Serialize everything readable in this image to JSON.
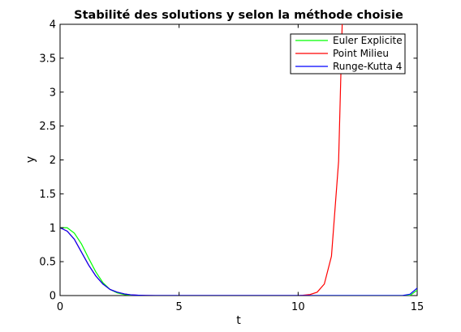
{
  "chart_data": {
    "type": "line",
    "title": "Stabilité des solutions y selon la méthode choisie",
    "xlabel": "t",
    "ylabel": "y",
    "xlim": [
      0,
      15
    ],
    "ylim": [
      0,
      4
    ],
    "xticks": [
      0,
      5,
      10,
      15
    ],
    "yticks": [
      0,
      0.5,
      1,
      1.5,
      2,
      2.5,
      3,
      3.5,
      4
    ],
    "xtick_labels": [
      "0",
      "5",
      "10",
      "15"
    ],
    "ytick_labels": [
      "0",
      "0.5",
      "1",
      "1.5",
      "2",
      "2.5",
      "3",
      "3.5",
      "4"
    ],
    "grid": false,
    "legend_position": "top-right",
    "series": [
      {
        "name": "Euler Explicite",
        "color": "#00ff00",
        "x": [
          0,
          0.3,
          0.6,
          0.9,
          1.2,
          1.5,
          1.8,
          2.1,
          2.4,
          2.7,
          3.0,
          3.3,
          3.6,
          3.9,
          4.2,
          4.5,
          6,
          8,
          10,
          12,
          14,
          14.7,
          15
        ],
        "y": [
          1.0,
          1.0,
          0.92,
          0.76,
          0.55,
          0.35,
          0.19,
          0.09,
          0.04,
          0.015,
          0.005,
          0.002,
          0.001,
          0.0,
          0.0,
          0.0,
          0.0,
          0.0,
          0.0,
          0.0,
          0.0,
          0.0,
          0.08
        ]
      },
      {
        "name": "Point Milieu",
        "color": "#ff0000",
        "x": [
          0,
          0.3,
          0.6,
          0.9,
          1.2,
          1.5,
          1.8,
          2.1,
          2.4,
          2.7,
          3.0,
          3.3,
          3.6,
          4.0,
          5,
          6,
          7,
          8,
          9,
          10,
          10.2,
          10.5,
          10.8,
          11.1,
          11.4,
          11.7,
          11.85
        ],
        "y": [
          1.0,
          0.95,
          0.83,
          0.64,
          0.45,
          0.29,
          0.17,
          0.09,
          0.05,
          0.025,
          0.01,
          0.005,
          0.002,
          0.0,
          0.0,
          0.0,
          0.0,
          0.0,
          0.0,
          0.0,
          0.005,
          0.015,
          0.05,
          0.17,
          0.58,
          1.98,
          4.0
        ]
      },
      {
        "name": "Runge-Kutta 4",
        "color": "#0000ff",
        "x": [
          0,
          0.3,
          0.6,
          0.9,
          1.2,
          1.5,
          1.8,
          2.1,
          2.4,
          2.7,
          3.0,
          3.3,
          3.6,
          4.0,
          5,
          7,
          9,
          11,
          13,
          14,
          14.4,
          14.7,
          15
        ],
        "y": [
          1.0,
          0.95,
          0.83,
          0.64,
          0.45,
          0.29,
          0.17,
          0.09,
          0.05,
          0.025,
          0.01,
          0.005,
          0.002,
          0.0,
          0.0,
          0.0,
          0.0,
          0.0,
          0.0,
          0.0,
          0.002,
          0.02,
          0.11
        ]
      }
    ]
  }
}
